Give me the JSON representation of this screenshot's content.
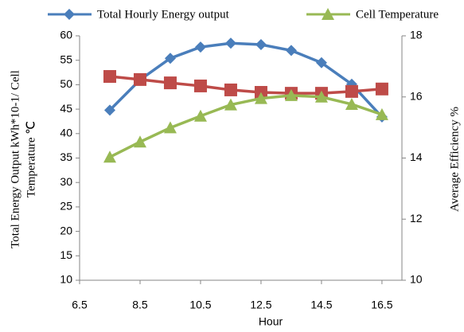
{
  "chart_data": {
    "type": "line",
    "x_label": "Hour",
    "y_label": [
      "Total Energy Output kWh*10-1/ Cell",
      "Temperature ℃"
    ],
    "y2_label": "Average Efficiency %",
    "x": [
      7.5,
      8.5,
      9.5,
      10.5,
      11.5,
      12.5,
      13.5,
      14.5,
      15.5,
      16.5
    ],
    "xlim": [
      6.5,
      17.16
    ],
    "xticks": [
      6.5,
      8.5,
      10.5,
      12.5,
      14.5,
      16.5
    ],
    "ylim": [
      10,
      60
    ],
    "yticks": [
      10,
      15,
      20,
      25,
      30,
      35,
      40,
      45,
      50,
      55,
      60
    ],
    "y2lim": [
      10,
      18
    ],
    "y2ticks": [
      10,
      12,
      14,
      16,
      18
    ],
    "series": [
      {
        "name": "Total Hourly Energy output",
        "color": "#4a7ebb",
        "marker": "diamond",
        "values": [
          44.8,
          51,
          55.4,
          57.7,
          58.5,
          58.2,
          57,
          54.5,
          50.1,
          43.4
        ]
      },
      {
        "color": "#be4b48",
        "marker": "square",
        "axis": "y2",
        "values": [
          16.67,
          16.57,
          16.46,
          16.36,
          16.23,
          16.15,
          16.12,
          16.12,
          16.18,
          16.26
        ]
      },
      {
        "name": "Cell Temperature",
        "color": "#98b954",
        "marker": "triangle",
        "values": [
          35.2,
          38.3,
          41.2,
          43.6,
          45.9,
          47.2,
          47.8,
          47.5,
          46,
          43.9
        ]
      }
    ]
  }
}
